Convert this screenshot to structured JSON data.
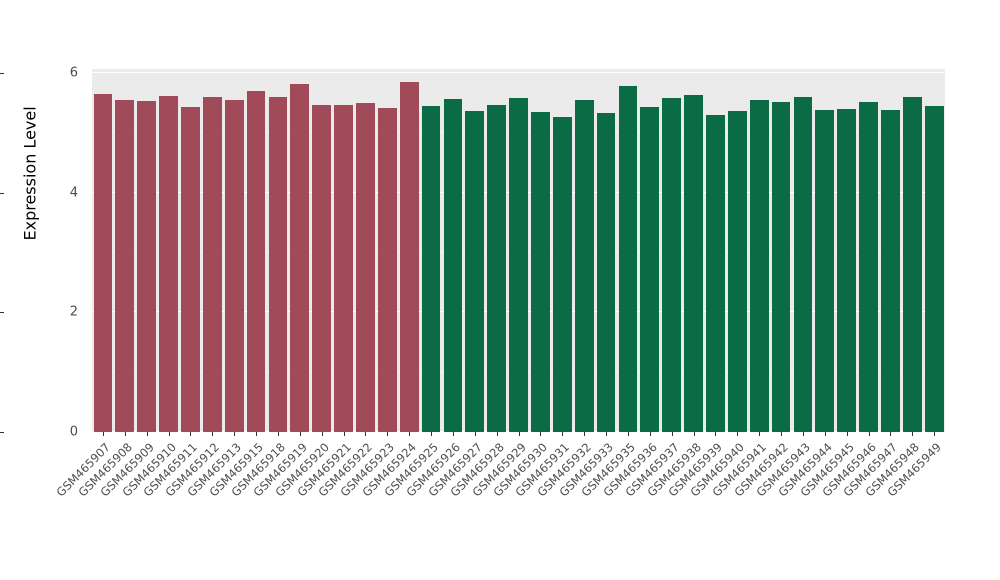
{
  "chart_data": {
    "type": "bar",
    "title": "",
    "xlabel": "",
    "ylabel": "Expression Level",
    "ylim": [
      0,
      6.07
    ],
    "yticks_major": [
      0,
      2,
      4,
      6
    ],
    "yticks_minor": [
      1,
      3,
      5
    ],
    "grid": true,
    "legend_position": "none",
    "panel_background": "#EBEBEB",
    "gridline_color": "#ffffff",
    "group_split_index": 15,
    "group_colors": {
      "left_group": "#A04A5A",
      "right_group": "#0B6B45"
    },
    "categories": [
      "GSM465907",
      "GSM465908",
      "GSM465909",
      "GSM465910",
      "GSM465911",
      "GSM465912",
      "GSM465913",
      "GSM465915",
      "GSM465918",
      "GSM465919",
      "GSM465920",
      "GSM465921",
      "GSM465922",
      "GSM465923",
      "GSM465924",
      "GSM465925",
      "GSM465926",
      "GSM465927",
      "GSM465928",
      "GSM465929",
      "GSM465930",
      "GSM465931",
      "GSM465932",
      "GSM465933",
      "GSM465935",
      "GSM465936",
      "GSM465937",
      "GSM465938",
      "GSM465939",
      "GSM465940",
      "GSM465941",
      "GSM465942",
      "GSM465943",
      "GSM465944",
      "GSM465945",
      "GSM465946",
      "GSM465947",
      "GSM465948",
      "GSM465949"
    ],
    "values": [
      5.65,
      5.55,
      5.54,
      5.62,
      5.44,
      5.6,
      5.55,
      5.7,
      5.6,
      5.82,
      5.47,
      5.46,
      5.5,
      5.42,
      5.85,
      5.45,
      5.57,
      5.36,
      5.47,
      5.58,
      5.35,
      5.27,
      5.55,
      5.33,
      5.78,
      5.44,
      5.58,
      5.63,
      5.3,
      5.36,
      5.55,
      5.52,
      5.6,
      5.39,
      5.4,
      5.52,
      5.38,
      5.6,
      5.45
    ]
  }
}
